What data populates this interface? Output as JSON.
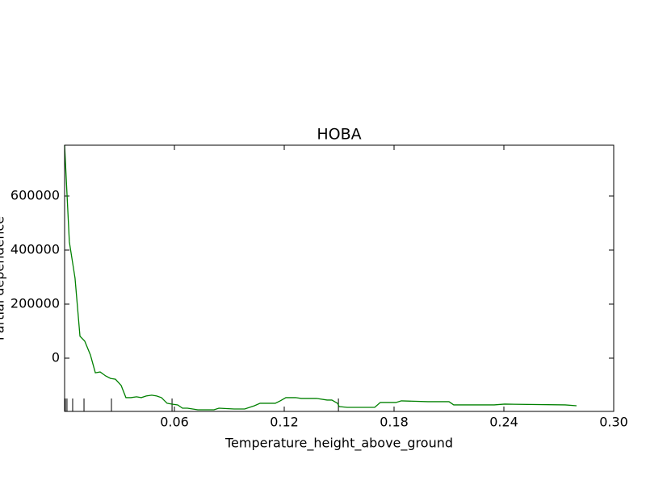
{
  "chart_data": {
    "type": "line",
    "title": "HOBA",
    "x_label": "Temperature_height_above_ground",
    "y_label": "Partial dependence",
    "x": [
      0.0,
      0.0026,
      0.0057,
      0.0084,
      0.011,
      0.0141,
      0.0168,
      0.0194,
      0.0225,
      0.0251,
      0.0278,
      0.0309,
      0.0335,
      0.0362,
      0.0393,
      0.0419,
      0.0446,
      0.0476,
      0.0503,
      0.0529,
      0.056,
      0.0587,
      0.0618,
      0.0644,
      0.0671,
      0.0728,
      0.0816,
      0.0843,
      0.0926,
      0.0984,
      0.1037,
      0.1068,
      0.1151,
      0.1178,
      0.1209,
      0.1262,
      0.1293,
      0.1376,
      0.1434,
      0.146,
      0.1491,
      0.15,
      0.1544,
      0.1694,
      0.1725,
      0.181,
      0.184,
      0.1985,
      0.2074,
      0.21,
      0.2126,
      0.2347,
      0.2404,
      0.2735,
      0.2797
    ],
    "series": [
      {
        "name": "Partial dependence",
        "color": "#008000",
        "values": [
          788000,
          430000,
          296000,
          81000,
          63000,
          12000,
          -54000,
          -51000,
          -66000,
          -75000,
          -78000,
          -101000,
          -146000,
          -146000,
          -143000,
          -146000,
          -140000,
          -137000,
          -140000,
          -146000,
          -167000,
          -170000,
          -173000,
          -185000,
          -185000,
          -191000,
          -191000,
          -185000,
          -188000,
          -188000,
          -176000,
          -167000,
          -167000,
          -158000,
          -146000,
          -146000,
          -149000,
          -149000,
          -155000,
          -155000,
          -167000,
          -179000,
          -182000,
          -182000,
          -164000,
          -164000,
          -158000,
          -161000,
          -161000,
          -161000,
          -173000,
          -173000,
          -170000,
          -173000,
          -176000
        ]
      }
    ],
    "deciles": [
      0.0004,
      0.0013,
      0.0044,
      0.0106,
      0.0256,
      0.0587,
      0.1496
    ],
    "xlim": [
      0,
      0.3
    ],
    "xticks": [
      0.06,
      0.12,
      0.18,
      0.24,
      {
        "value": 0.3,
        "label": "0.30"
      }
    ],
    "ylim": [
      -197000,
      788000
    ],
    "yticks": [
      0,
      200000,
      400000,
      600000
    ]
  }
}
